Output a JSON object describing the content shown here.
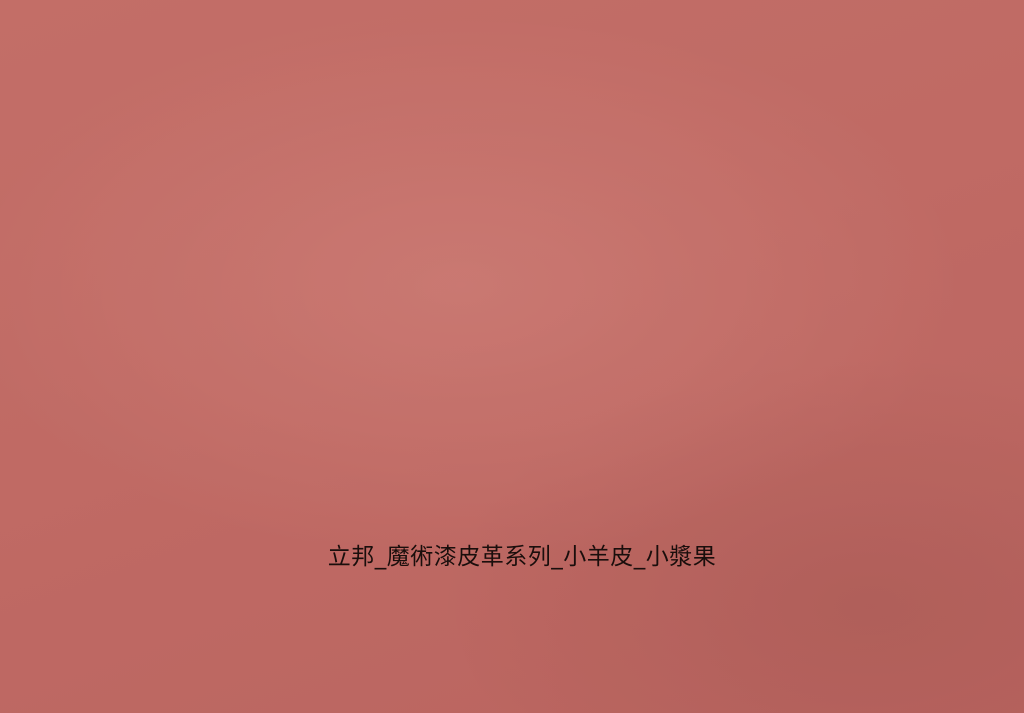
{
  "caption": "立邦_魔術漆皮革系列_小羊皮_小漿果",
  "surface": {
    "texture": "leather-grain",
    "base_color": "#b95e58"
  }
}
